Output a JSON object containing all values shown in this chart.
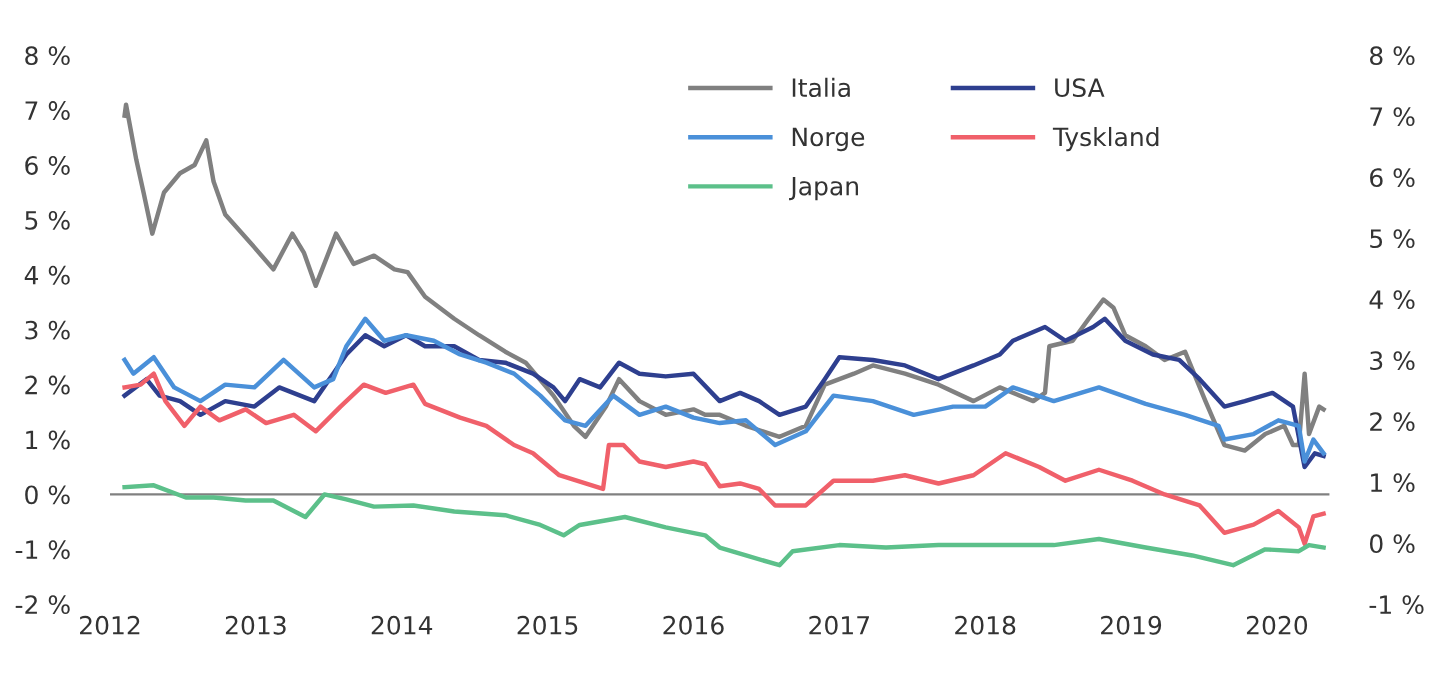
{
  "chart_data": {
    "type": "line",
    "xlim": [
      2012,
      2020.36
    ],
    "xticks": [
      2012,
      2013,
      2014,
      2015,
      2016,
      2017,
      2018,
      2019,
      2020
    ],
    "ylim": [
      -2,
      8
    ],
    "yticks": [
      {
        "value": -2,
        "label": "-2 %"
      },
      {
        "value": -1,
        "label": "-1 %"
      },
      {
        "value": 0,
        "label": "0 %"
      },
      {
        "value": 1,
        "label": "1 %"
      },
      {
        "value": 2,
        "label": "2 %"
      },
      {
        "value": 3,
        "label": "3 %"
      },
      {
        "value": 4,
        "label": "4 %"
      },
      {
        "value": 5,
        "label": "5 %"
      },
      {
        "value": 6,
        "label": "6 %"
      },
      {
        "value": 7,
        "label": "7 %"
      },
      {
        "value": 8,
        "label": "8 %"
      }
    ],
    "y2lim": [
      -1,
      8
    ],
    "y2ticks": [
      {
        "value": -1,
        "label": "-1 %"
      },
      {
        "value": 0,
        "label": "0 %"
      },
      {
        "value": 1,
        "label": "1 %"
      },
      {
        "value": 2,
        "label": "2 %"
      },
      {
        "value": 3,
        "label": "3 %"
      },
      {
        "value": 4,
        "label": "4 %"
      },
      {
        "value": 5,
        "label": "5 %"
      },
      {
        "value": 6,
        "label": "6 %"
      },
      {
        "value": 7,
        "label": "7 %"
      },
      {
        "value": 8,
        "label": "8 %"
      }
    ],
    "grid": false,
    "legend": "top right",
    "marker": "none",
    "line_style": "solid",
    "ref_lines": [
      {
        "axis": "y",
        "value": 0,
        "color": "#808080"
      }
    ],
    "series": [
      {
        "name": "Italia",
        "color": "#808080",
        "x": [
          2012.1,
          2012.11,
          2012.18,
          2012.23,
          2012.29,
          2012.37,
          2012.48,
          2012.58,
          2012.66,
          2012.71,
          2012.79,
          2012.99,
          2013.12,
          2013.25,
          2013.33,
          2013.41,
          2013.55,
          2013.67,
          2013.81,
          2013.95,
          2014.04,
          2014.16,
          2014.36,
          2014.53,
          2014.71,
          2014.85,
          2015.04,
          2015.18,
          2015.26,
          2015.4,
          2015.49,
          2015.63,
          2015.81,
          2016.0,
          2016.08,
          2016.18,
          2016.36,
          2016.59,
          2016.77,
          2016.9,
          2017.1,
          2017.23,
          2017.45,
          2017.68,
          2017.92,
          2018.1,
          2018.33,
          2018.41,
          2018.44,
          2018.6,
          2018.71,
          2018.81,
          2018.88,
          2018.96,
          2019.1,
          2019.23,
          2019.37,
          2019.51,
          2019.64,
          2019.78,
          2019.92,
          2020.05,
          2020.11,
          2020.15,
          2020.19,
          2020.22,
          2020.29,
          2020.32
        ],
        "values": [
          6.9,
          7.1,
          6.1,
          5.5,
          4.75,
          5.5,
          5.85,
          6.0,
          6.45,
          5.7,
          5.1,
          4.5,
          4.1,
          4.75,
          4.4,
          3.8,
          4.75,
          4.2,
          4.35,
          4.1,
          4.05,
          3.6,
          3.2,
          2.9,
          2.6,
          2.4,
          1.8,
          1.25,
          1.05,
          1.6,
          2.1,
          1.7,
          1.45,
          1.55,
          1.45,
          1.45,
          1.25,
          1.05,
          1.25,
          2.0,
          2.2,
          2.35,
          2.2,
          2.0,
          1.7,
          1.95,
          1.7,
          1.85,
          2.7,
          2.8,
          3.2,
          3.55,
          3.4,
          2.9,
          2.7,
          2.45,
          2.6,
          1.7,
          0.9,
          0.8,
          1.1,
          1.25,
          0.9,
          0.9,
          2.2,
          1.1,
          1.6,
          1.55
        ]
      },
      {
        "name": "USA",
        "color": "#2e3f8f",
        "x": [
          2012.1,
          2012.25,
          2012.34,
          2012.48,
          2012.62,
          2012.79,
          2012.99,
          2013.16,
          2013.4,
          2013.53,
          2013.62,
          2013.75,
          2013.88,
          2014.03,
          2014.16,
          2014.36,
          2014.53,
          2014.71,
          2014.9,
          2015.04,
          2015.12,
          2015.22,
          2015.36,
          2015.49,
          2015.63,
          2015.81,
          2016.0,
          2016.18,
          2016.32,
          2016.45,
          2016.59,
          2016.77,
          2016.9,
          2017.0,
          2017.23,
          2017.45,
          2017.68,
          2017.92,
          2018.1,
          2018.19,
          2018.41,
          2018.55,
          2018.74,
          2018.82,
          2018.96,
          2019.15,
          2019.33,
          2019.47,
          2019.64,
          2019.78,
          2019.97,
          2020.11,
          2020.19,
          2020.26,
          2020.32
        ],
        "values": [
          1.8,
          2.1,
          1.8,
          1.7,
          1.45,
          1.7,
          1.6,
          1.95,
          1.7,
          2.2,
          2.55,
          2.9,
          2.7,
          2.9,
          2.7,
          2.7,
          2.45,
          2.4,
          2.2,
          1.95,
          1.7,
          2.1,
          1.95,
          2.4,
          2.2,
          2.15,
          2.2,
          1.7,
          1.85,
          1.7,
          1.45,
          1.6,
          2.1,
          2.5,
          2.45,
          2.35,
          2.1,
          2.35,
          2.55,
          2.8,
          3.05,
          2.8,
          3.05,
          3.2,
          2.8,
          2.55,
          2.45,
          2.1,
          1.6,
          1.7,
          1.85,
          1.6,
          0.5,
          0.75,
          0.7
        ]
      },
      {
        "name": "Norge",
        "color": "#4a90d9",
        "x": [
          2012.1,
          2012.16,
          2012.3,
          2012.44,
          2012.62,
          2012.79,
          2012.99,
          2013.19,
          2013.4,
          2013.53,
          2013.62,
          2013.75,
          2013.88,
          2014.03,
          2014.22,
          2014.4,
          2014.58,
          2014.77,
          2014.95,
          2015.12,
          2015.26,
          2015.45,
          2015.63,
          2015.81,
          2016.0,
          2016.18,
          2016.36,
          2016.56,
          2016.77,
          2016.96,
          2017.23,
          2017.51,
          2017.78,
          2018.0,
          2018.19,
          2018.47,
          2018.78,
          2019.1,
          2019.37,
          2019.6,
          2019.64,
          2019.84,
          2020.01,
          2020.15,
          2020.19,
          2020.25,
          2020.32
        ],
        "values": [
          2.45,
          2.2,
          2.5,
          1.95,
          1.7,
          2.0,
          1.95,
          2.45,
          1.95,
          2.1,
          2.7,
          3.2,
          2.8,
          2.9,
          2.8,
          2.55,
          2.4,
          2.2,
          1.8,
          1.35,
          1.25,
          1.8,
          1.45,
          1.6,
          1.4,
          1.3,
          1.35,
          0.9,
          1.15,
          1.8,
          1.7,
          1.45,
          1.6,
          1.6,
          1.95,
          1.7,
          1.95,
          1.65,
          1.45,
          1.25,
          1.0,
          1.1,
          1.35,
          1.25,
          0.6,
          1.0,
          0.75
        ]
      },
      {
        "name": "Tyskland",
        "color": "#f0606a",
        "x": [
          2012.1,
          2012.21,
          2012.3,
          2012.38,
          2012.51,
          2012.62,
          2012.75,
          2012.93,
          2013.07,
          2013.26,
          2013.41,
          2013.58,
          2013.74,
          2013.89,
          2014.08,
          2014.16,
          2014.4,
          2014.58,
          2014.77,
          2014.9,
          2015.08,
          2015.26,
          2015.38,
          2015.42,
          2015.52,
          2015.63,
          2015.81,
          2016.0,
          2016.08,
          2016.18,
          2016.32,
          2016.45,
          2016.56,
          2016.77,
          2016.96,
          2017.23,
          2017.45,
          2017.68,
          2017.92,
          2018.14,
          2018.37,
          2018.55,
          2018.78,
          2019.01,
          2019.23,
          2019.47,
          2019.64,
          2019.84,
          2020.01,
          2020.15,
          2020.19,
          2020.25,
          2020.32
        ],
        "values": [
          1.95,
          2.0,
          2.2,
          1.7,
          1.25,
          1.6,
          1.35,
          1.55,
          1.3,
          1.45,
          1.15,
          1.6,
          2.0,
          1.85,
          2.0,
          1.65,
          1.4,
          1.25,
          0.9,
          0.75,
          0.35,
          0.2,
          0.1,
          0.9,
          0.9,
          0.6,
          0.5,
          0.6,
          0.55,
          0.15,
          0.2,
          0.1,
          -0.2,
          -0.2,
          0.25,
          0.25,
          0.35,
          0.2,
          0.35,
          0.75,
          0.5,
          0.25,
          0.45,
          0.25,
          0.0,
          -0.2,
          -0.7,
          -0.55,
          -0.3,
          -0.6,
          -0.9,
          -0.4,
          -0.35
        ]
      },
      {
        "name": "Japan",
        "color": "#5cc08a",
        "axis": "y2",
        "x": [
          2012.1,
          2012.3,
          2012.52,
          2012.71,
          2012.93,
          2013.12,
          2013.34,
          2013.47,
          2013.62,
          2013.81,
          2014.08,
          2014.36,
          2014.71,
          2014.95,
          2015.11,
          2015.22,
          2015.53,
          2015.81,
          2016.08,
          2016.18,
          2016.36,
          2016.59,
          2016.68,
          2017.0,
          2017.32,
          2017.68,
          2018.1,
          2018.47,
          2018.78,
          2019.1,
          2019.42,
          2019.7,
          2019.92,
          2020.15,
          2020.22,
          2020.32
        ],
        "values": [
          0.92,
          0.95,
          0.75,
          0.75,
          0.7,
          0.7,
          0.43,
          0.8,
          0.72,
          0.6,
          0.62,
          0.52,
          0.46,
          0.3,
          0.13,
          0.3,
          0.43,
          0.26,
          0.13,
          -0.07,
          -0.2,
          -0.36,
          -0.13,
          -0.03,
          -0.07,
          -0.03,
          -0.03,
          -0.03,
          0.07,
          -0.07,
          -0.2,
          -0.36,
          -0.1,
          -0.13,
          -0.03,
          -0.07
        ]
      }
    ]
  }
}
